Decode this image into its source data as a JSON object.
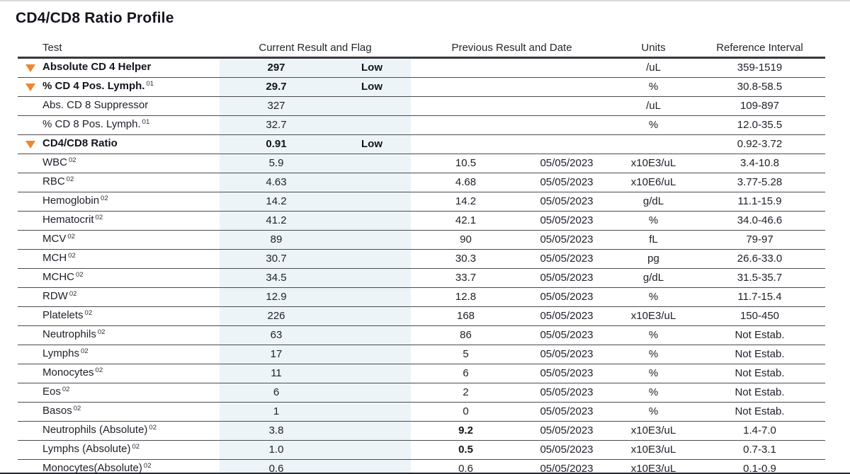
{
  "page": {
    "title": "CD4/CD8 Ratio Profile"
  },
  "table": {
    "headers": {
      "test": "Test",
      "current": "Current Result and Flag",
      "previous": "Previous Result and Date",
      "units": "Units",
      "reference": "Reference Interval"
    },
    "colors": {
      "flag_triangle": "#F0862F",
      "result_column_bg": "#ECF4F8"
    },
    "flag_icon": "down-triangle-icon",
    "rows": [
      {
        "flagged": true,
        "bold": true,
        "test": "Absolute CD 4 Helper",
        "sup": "",
        "current": "297",
        "flag": "Low",
        "previous": "",
        "previous_bold": false,
        "date": "",
        "units": "/uL",
        "reference": "359-1519"
      },
      {
        "flagged": true,
        "bold": true,
        "test": "% CD 4 Pos. Lymph.",
        "sup": "01",
        "current": "29.7",
        "flag": "Low",
        "previous": "",
        "previous_bold": false,
        "date": "",
        "units": "%",
        "reference": "30.8-58.5"
      },
      {
        "flagged": false,
        "bold": false,
        "test": "Abs. CD 8 Suppressor",
        "sup": "",
        "current": "327",
        "flag": "",
        "previous": "",
        "previous_bold": false,
        "date": "",
        "units": "/uL",
        "reference": "109-897"
      },
      {
        "flagged": false,
        "bold": false,
        "test": "% CD 8 Pos. Lymph.",
        "sup": "01",
        "current": "32.7",
        "flag": "",
        "previous": "",
        "previous_bold": false,
        "date": "",
        "units": "%",
        "reference": "12.0-35.5"
      },
      {
        "flagged": true,
        "bold": true,
        "test": "CD4/CD8 Ratio",
        "sup": "",
        "current": "0.91",
        "flag": "Low",
        "previous": "",
        "previous_bold": false,
        "date": "",
        "units": "",
        "reference": "0.92-3.72"
      },
      {
        "flagged": false,
        "bold": false,
        "test": "WBC",
        "sup": "02",
        "current": "5.9",
        "flag": "",
        "previous": "10.5",
        "previous_bold": false,
        "date": "05/05/2023",
        "units": "x10E3/uL",
        "reference": "3.4-10.8"
      },
      {
        "flagged": false,
        "bold": false,
        "test": "RBC",
        "sup": "02",
        "current": "4.63",
        "flag": "",
        "previous": "4.68",
        "previous_bold": false,
        "date": "05/05/2023",
        "units": "x10E6/uL",
        "reference": "3.77-5.28"
      },
      {
        "flagged": false,
        "bold": false,
        "test": "Hemoglobin",
        "sup": "02",
        "current": "14.2",
        "flag": "",
        "previous": "14.2",
        "previous_bold": false,
        "date": "05/05/2023",
        "units": "g/dL",
        "reference": "11.1-15.9"
      },
      {
        "flagged": false,
        "bold": false,
        "test": "Hematocrit",
        "sup": "02",
        "current": "41.2",
        "flag": "",
        "previous": "42.1",
        "previous_bold": false,
        "date": "05/05/2023",
        "units": "%",
        "reference": "34.0-46.6"
      },
      {
        "flagged": false,
        "bold": false,
        "test": "MCV",
        "sup": "02",
        "current": "89",
        "flag": "",
        "previous": "90",
        "previous_bold": false,
        "date": "05/05/2023",
        "units": "fL",
        "reference": "79-97"
      },
      {
        "flagged": false,
        "bold": false,
        "test": "MCH",
        "sup": "02",
        "current": "30.7",
        "flag": "",
        "previous": "30.3",
        "previous_bold": false,
        "date": "05/05/2023",
        "units": "pg",
        "reference": "26.6-33.0"
      },
      {
        "flagged": false,
        "bold": false,
        "test": "MCHC",
        "sup": "02",
        "current": "34.5",
        "flag": "",
        "previous": "33.7",
        "previous_bold": false,
        "date": "05/05/2023",
        "units": "g/dL",
        "reference": "31.5-35.7"
      },
      {
        "flagged": false,
        "bold": false,
        "test": "RDW",
        "sup": "02",
        "current": "12.9",
        "flag": "",
        "previous": "12.8",
        "previous_bold": false,
        "date": "05/05/2023",
        "units": "%",
        "reference": "11.7-15.4"
      },
      {
        "flagged": false,
        "bold": false,
        "test": "Platelets",
        "sup": "02",
        "current": "226",
        "flag": "",
        "previous": "168",
        "previous_bold": false,
        "date": "05/05/2023",
        "units": "x10E3/uL",
        "reference": "150-450"
      },
      {
        "flagged": false,
        "bold": false,
        "test": "Neutrophils",
        "sup": "02",
        "current": "63",
        "flag": "",
        "previous": "86",
        "previous_bold": false,
        "date": "05/05/2023",
        "units": "%",
        "reference": "Not Estab."
      },
      {
        "flagged": false,
        "bold": false,
        "test": "Lymphs",
        "sup": "02",
        "current": "17",
        "flag": "",
        "previous": "5",
        "previous_bold": false,
        "date": "05/05/2023",
        "units": "%",
        "reference": "Not Estab."
      },
      {
        "flagged": false,
        "bold": false,
        "test": "Monocytes",
        "sup": "02",
        "current": "11",
        "flag": "",
        "previous": "6",
        "previous_bold": false,
        "date": "05/05/2023",
        "units": "%",
        "reference": "Not Estab."
      },
      {
        "flagged": false,
        "bold": false,
        "test": "Eos",
        "sup": "02",
        "current": "6",
        "flag": "",
        "previous": "2",
        "previous_bold": false,
        "date": "05/05/2023",
        "units": "%",
        "reference": "Not Estab."
      },
      {
        "flagged": false,
        "bold": false,
        "test": "Basos",
        "sup": "02",
        "current": "1",
        "flag": "",
        "previous": "0",
        "previous_bold": false,
        "date": "05/05/2023",
        "units": "%",
        "reference": "Not Estab."
      },
      {
        "flagged": false,
        "bold": false,
        "test": "Neutrophils (Absolute)",
        "sup": "02",
        "current": "3.8",
        "flag": "",
        "previous": "9.2",
        "previous_bold": true,
        "date": "05/05/2023",
        "units": "x10E3/uL",
        "reference": "1.4-7.0"
      },
      {
        "flagged": false,
        "bold": false,
        "test": "Lymphs (Absolute)",
        "sup": "02",
        "current": "1.0",
        "flag": "",
        "previous": "0.5",
        "previous_bold": true,
        "date": "05/05/2023",
        "units": "x10E3/uL",
        "reference": "0.7-3.1"
      },
      {
        "flagged": false,
        "bold": false,
        "test": "Monocytes(Absolute)",
        "sup": "02",
        "current": "0.6",
        "flag": "",
        "previous": "0.6",
        "previous_bold": false,
        "date": "05/05/2023",
        "units": "x10E3/uL",
        "reference": "0.1-0.9"
      }
    ]
  }
}
